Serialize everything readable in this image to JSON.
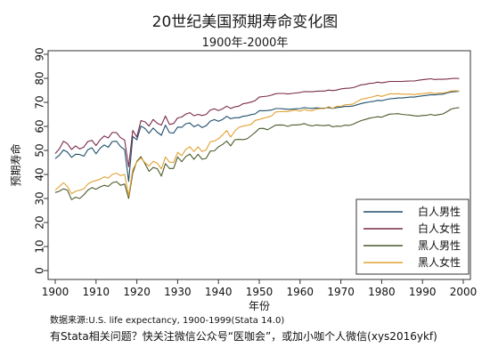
{
  "chart_data": {
    "type": "line",
    "title": "20世纪美国预期寿命变化图",
    "subtitle": "1900年-2000年",
    "xlabel": "年份",
    "ylabel": "预期寿命",
    "xlim": [
      1900,
      2000
    ],
    "ylim": [
      0,
      90
    ],
    "xticks": [
      1900,
      1910,
      1920,
      1930,
      1940,
      1950,
      1960,
      1970,
      1980,
      1990,
      2000
    ],
    "yticks": [
      0,
      10,
      20,
      30,
      40,
      50,
      60,
      70,
      80,
      90
    ],
    "grid": false,
    "legend_position": "bottom-right",
    "x": [
      1900,
      1901,
      1902,
      1903,
      1904,
      1905,
      1906,
      1907,
      1908,
      1909,
      1910,
      1911,
      1912,
      1913,
      1914,
      1915,
      1916,
      1917,
      1918,
      1919,
      1920,
      1921,
      1922,
      1923,
      1924,
      1925,
      1926,
      1927,
      1928,
      1929,
      1930,
      1931,
      1932,
      1933,
      1934,
      1935,
      1936,
      1937,
      1938,
      1939,
      1940,
      1941,
      1942,
      1943,
      1944,
      1945,
      1946,
      1947,
      1948,
      1949,
      1950,
      1951,
      1952,
      1953,
      1954,
      1955,
      1956,
      1957,
      1958,
      1959,
      1960,
      1961,
      1962,
      1963,
      1964,
      1965,
      1966,
      1967,
      1968,
      1969,
      1970,
      1971,
      1972,
      1973,
      1974,
      1975,
      1976,
      1977,
      1978,
      1979,
      1980,
      1981,
      1982,
      1983,
      1984,
      1985,
      1986,
      1987,
      1988,
      1989,
      1990,
      1991,
      1992,
      1993,
      1994,
      1995,
      1996,
      1997,
      1998,
      1999
    ],
    "series": [
      {
        "name": "白人男性",
        "color": "#1f4e6b",
        "values": [
          46.6,
          48.0,
          50.2,
          49.3,
          47.1,
          48.4,
          48.3,
          47.6,
          50.3,
          51.1,
          48.6,
          50.9,
          52.3,
          51.3,
          53.7,
          53.8,
          51.6,
          50.3,
          37.1,
          55.8,
          54.4,
          60.1,
          59.1,
          57.1,
          59.3,
          57.6,
          56.3,
          60.5,
          57.4,
          57.2,
          59.7,
          59.6,
          61.1,
          61.4,
          59.8,
          60.7,
          59.5,
          60.3,
          62.2,
          62.8,
          62.1,
          62.9,
          64.2,
          63.2,
          63.6,
          63.6,
          64.2,
          64.4,
          64.9,
          65.2,
          66.5,
          66.5,
          66.6,
          66.8,
          67.4,
          67.4,
          67.3,
          67.1,
          67.2,
          67.3,
          67.4,
          67.8,
          67.6,
          67.5,
          67.7,
          67.6,
          67.6,
          67.8,
          67.5,
          67.8,
          68.0,
          68.3,
          68.3,
          68.5,
          69.0,
          69.5,
          69.9,
          70.2,
          70.4,
          70.8,
          70.7,
          71.1,
          71.5,
          71.6,
          71.8,
          71.8,
          72.0,
          72.2,
          72.2,
          72.5,
          72.7,
          72.9,
          73.2,
          73.1,
          73.3,
          73.4,
          73.9,
          74.3,
          74.5,
          74.6
        ]
      },
      {
        "name": "白人女性",
        "color": "#7a2a4a",
        "values": [
          48.7,
          50.6,
          53.8,
          52.8,
          50.4,
          51.9,
          50.6,
          51.4,
          53.7,
          54.2,
          52.0,
          54.4,
          56.0,
          55.2,
          57.5,
          57.4,
          55.3,
          54.3,
          43.2,
          58.3,
          55.6,
          62.4,
          61.9,
          60.1,
          62.9,
          61.3,
          60.5,
          64.3,
          60.8,
          61.2,
          63.5,
          63.9,
          65.1,
          65.7,
          64.4,
          65.0,
          64.5,
          65.0,
          66.8,
          67.3,
          66.6,
          67.3,
          68.4,
          67.5,
          68.1,
          68.4,
          69.4,
          69.7,
          70.1,
          70.7,
          72.2,
          72.4,
          72.6,
          73.0,
          73.6,
          73.7,
          73.7,
          73.5,
          73.7,
          73.9,
          74.1,
          74.5,
          74.4,
          74.4,
          74.6,
          74.7,
          74.7,
          75.1,
          74.9,
          75.1,
          75.6,
          75.8,
          75.9,
          76.1,
          76.7,
          77.3,
          77.5,
          77.9,
          78.0,
          78.4,
          78.1,
          78.4,
          78.7,
          78.7,
          78.7,
          78.7,
          78.8,
          78.9,
          78.9,
          79.2,
          79.4,
          79.6,
          79.8,
          79.5,
          79.6,
          79.6,
          79.7,
          79.9,
          80.0,
          79.9
        ]
      },
      {
        "name": "黑人男性",
        "color": "#4a5a2a",
        "values": [
          32.5,
          33.0,
          34.0,
          33.5,
          29.5,
          30.5,
          30.0,
          31.5,
          33.5,
          34.5,
          33.8,
          34.8,
          35.5,
          35.0,
          36.5,
          37.0,
          35.5,
          36.0,
          30.0,
          40.5,
          45.5,
          47.4,
          44.4,
          41.3,
          42.9,
          42.4,
          39.3,
          44.5,
          42.5,
          42.5,
          47.3,
          45.3,
          47.5,
          48.5,
          46.3,
          48.4,
          46.3,
          46.7,
          49.7,
          49.8,
          51.5,
          52.5,
          53.9,
          51.9,
          54.4,
          54.6,
          54.5,
          54.8,
          56.1,
          57.5,
          59.1,
          59.2,
          58.6,
          59.5,
          60.5,
          60.6,
          60.5,
          60.0,
          60.6,
          60.6,
          60.7,
          61.2,
          60.5,
          60.2,
          60.6,
          60.4,
          60.3,
          60.6,
          59.8,
          60.1,
          60.0,
          60.5,
          60.4,
          60.9,
          61.7,
          62.4,
          62.9,
          63.4,
          63.7,
          64.0,
          63.8,
          64.5,
          65.1,
          65.2,
          65.3,
          65.0,
          64.8,
          64.7,
          64.4,
          64.3,
          64.5,
          64.6,
          65.0,
          64.6,
          64.9,
          65.2,
          66.1,
          67.2,
          67.6,
          67.8
        ]
      },
      {
        "name": "黑人女性",
        "color": "#e0a030",
        "values": [
          33.5,
          35.0,
          36.5,
          35.0,
          32.0,
          33.0,
          33.5,
          34.0,
          36.0,
          37.0,
          37.5,
          38.0,
          39.0,
          38.5,
          40.0,
          40.5,
          39.5,
          40.0,
          31.1,
          42.0,
          45.2,
          46.9,
          44.9,
          43.5,
          45.5,
          44.7,
          42.3,
          47.3,
          45.1,
          45.0,
          49.2,
          47.8,
          50.5,
          51.5,
          49.5,
          51.5,
          49.5,
          50.3,
          53.6,
          53.9,
          54.9,
          56.4,
          58.3,
          55.6,
          58.0,
          59.6,
          60.1,
          60.4,
          60.8,
          62.5,
          62.9,
          63.4,
          63.8,
          64.3,
          66.0,
          66.1,
          66.2,
          66.2,
          66.6,
          66.8,
          66.3,
          67.0,
          66.6,
          66.5,
          67.2,
          67.4,
          67.4,
          68.2,
          67.5,
          68.4,
          68.3,
          69.0,
          69.1,
          69.3,
          70.3,
          71.3,
          71.6,
          72.0,
          72.4,
          72.9,
          72.5,
          73.0,
          73.6,
          73.5,
          73.6,
          73.4,
          73.4,
          73.4,
          73.2,
          73.5,
          73.6,
          73.8,
          74.0,
          73.7,
          73.9,
          73.9,
          74.2,
          74.7,
          74.8,
          74.7
        ]
      }
    ]
  },
  "note": "数据来源:U.S. life expectancy, 1900-1999(Stata 14.0)",
  "footer": "有Stata相关问题？快关注微信公众号“医咖会”，或加小咖个人微信(xys2016ykf)"
}
